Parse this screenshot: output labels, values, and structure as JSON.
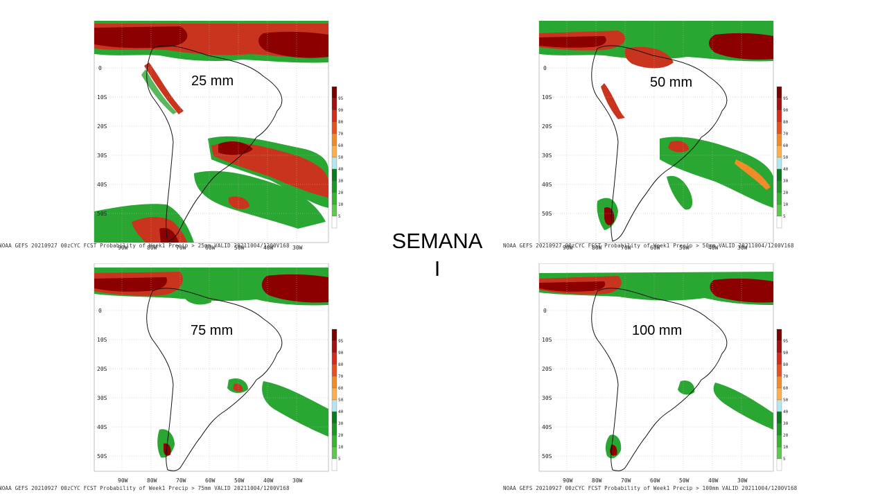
{
  "title": {
    "line1": "SEMANA",
    "line2": "I"
  },
  "panels": [
    {
      "id": "p25",
      "threshold_label": "25 mm",
      "caption": "NOAA GEFS 20210927 00zCYC FCST Probability of Week1 Precip > 25mm  VALID 20211004/1200V168"
    },
    {
      "id": "p50",
      "threshold_label": "50 mm",
      "caption": "NOAA GEFS 20210927 00zCYC FCST Probability of Week1 Precip > 50mm  VALID 20211004/1200V168"
    },
    {
      "id": "p75",
      "threshold_label": "75 mm",
      "caption": "NOAA GEFS 20210927 00zCYC FCST Probability of Week1 Precip > 75mm  VALID 20211004/1200V168"
    },
    {
      "id": "p100",
      "threshold_label": "100 mm",
      "caption": "NOAA GEFS 20210927 00zCYC FCST Probability of Week1 Precip > 100mm  VALID 20211004/1200V168"
    }
  ],
  "lat_labels": [
    "0",
    "10S",
    "20S",
    "30S",
    "40S",
    "50S"
  ],
  "lon_labels": [
    "90W",
    "80W",
    "70W",
    "60W",
    "50W",
    "40W",
    "30W"
  ],
  "colorbar": {
    "labels": [
      "95",
      "90",
      "80",
      "70",
      "60",
      "50",
      "40",
      "30",
      "20",
      "10",
      "5"
    ],
    "colors": [
      "#7a0000",
      "#a50f0f",
      "#d62a1e",
      "#e8501e",
      "#f08c28",
      "#fdb04a",
      "#b4e6f0",
      "#0a7a1e",
      "#1e9628",
      "#38b432",
      "#5ec850",
      "#ffffff"
    ]
  }
}
